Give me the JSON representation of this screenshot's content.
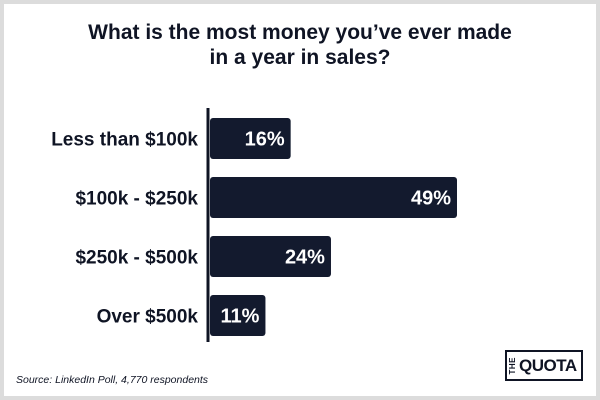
{
  "chart_data": {
    "type": "bar",
    "orientation": "horizontal",
    "title_lines": [
      "What is the most money you’ve ever made",
      "in a year in sales?"
    ],
    "categories": [
      "Less than $100k",
      "$100k - $250k",
      "$250k - $500k",
      "Over $500k"
    ],
    "values": [
      16,
      49,
      24,
      11
    ],
    "data_labels": [
      "16%",
      "49%",
      "24%",
      "11%"
    ],
    "xlim": [
      0,
      49
    ],
    "bar_color": "#131a2e",
    "label_color": "#ffffff",
    "grid": false,
    "legend": "none"
  },
  "source": "Source: LinkedIn Poll, 4,770 respondents",
  "logo": {
    "the": "THE",
    "quota": "QUOTA"
  },
  "colors": {
    "text": "#0f1424",
    "background": "#ffffff",
    "border": "#dcdcdc"
  }
}
